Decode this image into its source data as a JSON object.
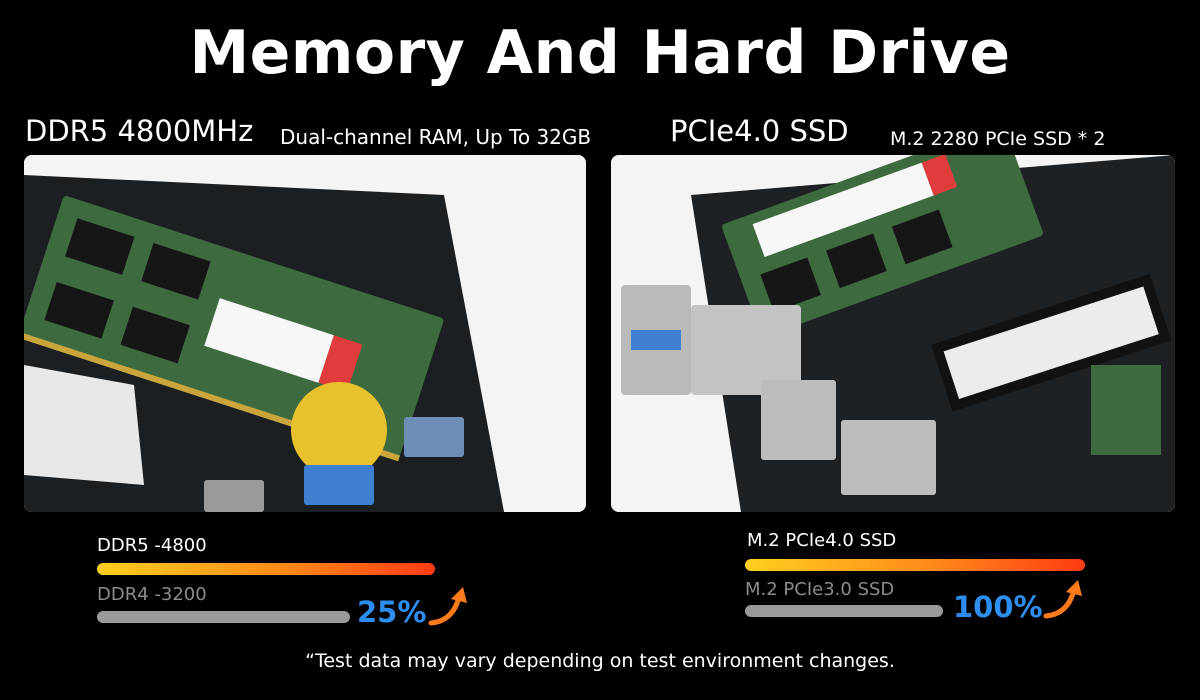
{
  "title": "Memory And Hard Drive",
  "panels": [
    {
      "heading": "DDR5 4800MHz",
      "subheading": "Dual-channel RAM, Up To 32GB",
      "bars": [
        {
          "label": "DDR5 -4800"
        },
        {
          "label": "DDR4 -3200"
        }
      ],
      "gain": "25%"
    },
    {
      "heading": "PCIe4.0 SSD",
      "subheading": "M.2 2280 PCIe SSD  * 2",
      "bars": [
        {
          "label": "M.2 PCIe4.0 SSD"
        },
        {
          "label": "M.2 PCIe3.0 SSD"
        }
      ],
      "gain": "100%"
    }
  ],
  "footnote": "“Test data may vary depending on test environment changes."
}
